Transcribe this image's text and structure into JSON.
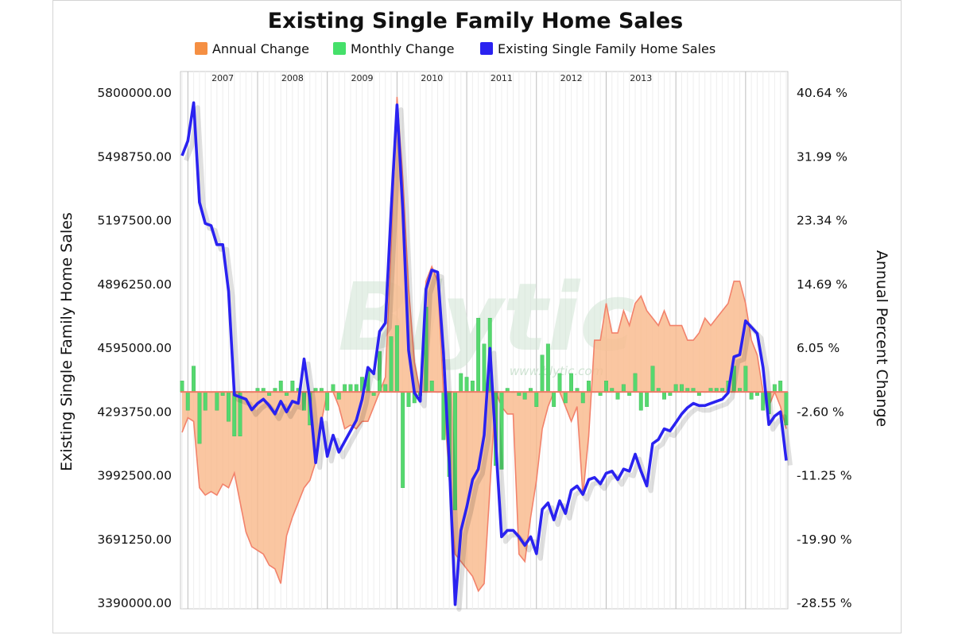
{
  "chart_data": {
    "type": "line",
    "title": "Existing Single Family Home Sales",
    "watermark": "Blytic",
    "watermark_url": "www.blytic.com",
    "legend_position": "top-center",
    "legend": [
      {
        "label": "Annual Change",
        "color": "#f58f43"
      },
      {
        "label": "Monthly Change",
        "color": "#45e06a"
      },
      {
        "label": "Existing Single Family Home Sales",
        "color": "#2a22f0"
      }
    ],
    "ylabel_left": "Existing Single Family Home Sales",
    "ylabel_right": "Annual Percent Change",
    "yticks_left": [
      "5800000.00",
      "5498750.00",
      "5197500.00",
      "4896250.00",
      "4595000.00",
      "4293750.00",
      "3992500.00",
      "3691250.00",
      "3390000.00"
    ],
    "yticks_right": [
      "40.64 %",
      "31.99 %",
      "23.34 %",
      "14.69 %",
      "6.05 %",
      "-2.60 %",
      "-11.25 %",
      "-19.90 %",
      "-28.55 %"
    ],
    "ylim_left": [
      3390000,
      5800000
    ],
    "ylim_right": [
      -28.55,
      40.64
    ],
    "years": [
      "2007",
      "2008",
      "2009",
      "2010",
      "2011",
      "2012",
      "2013"
    ],
    "x_start": "2006-12",
    "grid": true,
    "series": [
      {
        "name": "Existing Single Family Home Sales",
        "axis": "left",
        "values": [
          5500000,
          5570000,
          5750000,
          5280000,
          5180000,
          5170000,
          5080000,
          5080000,
          4860000,
          4370000,
          4360000,
          4350000,
          4300000,
          4330000,
          4350000,
          4320000,
          4280000,
          4340000,
          4290000,
          4340000,
          4330000,
          4540000,
          4350000,
          4050000,
          4260000,
          4080000,
          4180000,
          4100000,
          4150000,
          4200000,
          4250000,
          4350000,
          4500000,
          4470000,
          4670000,
          4710000,
          5250000,
          5740000,
          5240000,
          4580000,
          4380000,
          4340000,
          4870000,
          4960000,
          4950000,
          4570000,
          4050000,
          3380000,
          3730000,
          3840000,
          3970000,
          4020000,
          4180000,
          4590000,
          4140000,
          3700000,
          3730000,
          3730000,
          3700000,
          3660000,
          3700000,
          3620000,
          3830000,
          3860000,
          3780000,
          3870000,
          3810000,
          3920000,
          3940000,
          3900000,
          3970000,
          3980000,
          3950000,
          4000000,
          4010000,
          3970000,
          4020000,
          4010000,
          4090000,
          4010000,
          3940000,
          4140000,
          4160000,
          4210000,
          4200000,
          4240000,
          4280000,
          4310000,
          4330000,
          4320000,
          4320000,
          4330000,
          4340000,
          4350000,
          4380000,
          4550000,
          4560000,
          4720000,
          4690000,
          4660000,
          4500000,
          4230000,
          4270000,
          4290000,
          4060000
        ]
      },
      {
        "name": "Annual Change",
        "axis": "right",
        "values": [
          -5.5,
          -3.5,
          -4,
          -13,
          -14,
          -13.5,
          -14,
          -12.5,
          -13,
          -11,
          -15,
          -19,
          -21,
          -21.5,
          -22,
          -23.5,
          -24,
          -26,
          -19.5,
          -17,
          -15,
          -13,
          -12,
          -9.5,
          -4,
          0,
          0,
          -2,
          -5,
          -4.5,
          -5,
          -4,
          -4,
          -2,
          0,
          2,
          20,
          40,
          29,
          14,
          4,
          0,
          15,
          17,
          15,
          0,
          -12,
          -22,
          -23,
          -24,
          -25,
          -27,
          -26,
          -13,
          0,
          -2,
          -3,
          -3,
          -22,
          -23,
          -17,
          -12,
          -5,
          -2,
          0,
          0,
          -2,
          -4,
          -2,
          -14,
          -6,
          7,
          7,
          12,
          8,
          8,
          11,
          9,
          12,
          13,
          11,
          10,
          9,
          11,
          9,
          9,
          9,
          7,
          7,
          8,
          10,
          9,
          10,
          11,
          12,
          15,
          15,
          12,
          7,
          5,
          0,
          -2,
          0,
          -2,
          -5
        ]
      },
      {
        "name": "Monthly Change",
        "axis": "right",
        "values": [
          1.5,
          -2.5,
          3.5,
          -7,
          -2.5,
          0,
          -2.5,
          -0.5,
          -4,
          -6,
          -6,
          0,
          0,
          0.5,
          0.5,
          -0.5,
          0.5,
          1.5,
          -0.5,
          1.5,
          0.5,
          -2.5,
          -4.5,
          0.5,
          0.5,
          -2.5,
          1,
          -1,
          1,
          1,
          1,
          2,
          3,
          -0.5,
          5.5,
          1,
          7.5,
          9,
          -13,
          -2,
          -1.5,
          -0.5,
          11.5,
          1.5,
          0,
          -6.5,
          -11.5,
          -16,
          2.5,
          2,
          1.5,
          10,
          6.5,
          10,
          -10,
          -10.5,
          0.5,
          0,
          -0.5,
          -1,
          0.5,
          -2,
          5,
          6.5,
          -2,
          2.5,
          -1.5,
          2.5,
          0.5,
          -1.5,
          1.5,
          0,
          -0.5,
          1.5,
          0.5,
          -1,
          1,
          -0.5,
          2.5,
          -2.5,
          -2,
          3.5,
          0.5,
          -1,
          -0.5,
          1,
          1,
          0.5,
          0.5,
          -0.5,
          0,
          0.5,
          0.5,
          0.5,
          1.5,
          3.5,
          0.5,
          3.5,
          -1,
          -0.5,
          -2.5,
          -3,
          1,
          1.5,
          -4.5
        ]
      }
    ]
  }
}
